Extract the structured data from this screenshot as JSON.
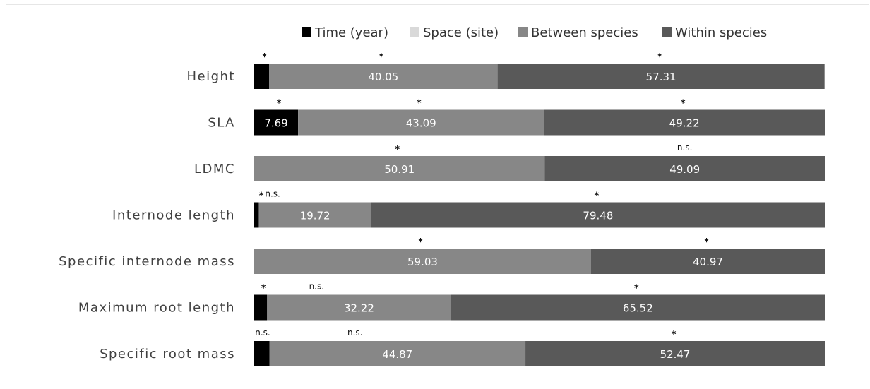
{
  "chart_data": {
    "type": "bar",
    "stacked": true,
    "orientation": "horizontal",
    "categories": [
      "Height",
      "SLA",
      "LDMC",
      "Internode length",
      "Specific internode mass",
      "Maximum root length",
      "Specific root mass"
    ],
    "series": [
      {
        "name": "Time (year)",
        "color": "#000000",
        "values": [
          2.6,
          7.69,
          0,
          0.8,
          0,
          2.26,
          2.66
        ],
        "labels": [
          "",
          "7.69",
          "",
          "",
          "",
          "",
          ""
        ]
      },
      {
        "name": "Space (site)",
        "color": "#d9d9d9",
        "values": [
          0,
          0,
          0,
          0,
          0,
          0,
          0
        ],
        "labels": [
          "",
          "",
          "",
          "",
          "",
          "",
          ""
        ]
      },
      {
        "name": "Between species",
        "color": "#878787",
        "values": [
          40.05,
          43.09,
          50.91,
          19.72,
          59.03,
          32.22,
          44.87
        ],
        "labels": [
          "40.05",
          "43.09",
          "50.91",
          "19.72",
          "59.03",
          "32.22",
          "44.87"
        ]
      },
      {
        "name": "Within species",
        "color": "#595959",
        "values": [
          57.31,
          49.22,
          49.09,
          79.48,
          40.97,
          65.52,
          52.47
        ],
        "labels": [
          "57.31",
          "49.22",
          "49.09",
          "79.48",
          "40.97",
          "65.52",
          "52.47"
        ]
      }
    ],
    "significance": [
      {
        "time": "*",
        "between": "*",
        "within": "*"
      },
      {
        "time": "*",
        "between": "*",
        "within": "*"
      },
      {
        "time": "",
        "between": "*",
        "within": "n.s."
      },
      {
        "time": "*",
        "between": "n.s.",
        "within": "*"
      },
      {
        "time": "",
        "between": "*",
        "within": "*"
      },
      {
        "time": "*",
        "between": "n.s.",
        "within": "*"
      },
      {
        "time": "n.s.",
        "between": "n.s.",
        "within": "*"
      }
    ],
    "xlim": [
      0,
      100
    ],
    "legend_position": "top",
    "grid": false
  }
}
